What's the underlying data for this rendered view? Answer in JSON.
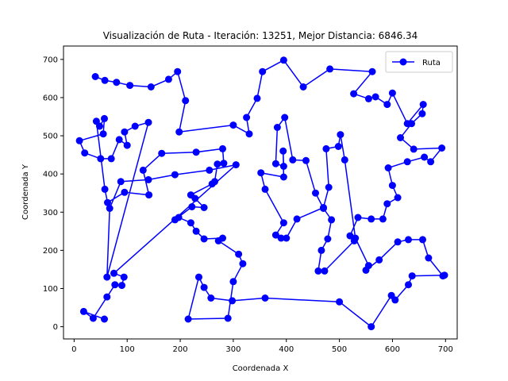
{
  "chart_data": {
    "type": "line",
    "title": "Visualización de Ruta - Iteración: 13251, Mejor Distancia: 6846.34",
    "xlabel": "Coordenada X",
    "ylabel": "Coordenada Y",
    "xlim": [
      -20,
      722
    ],
    "ylim": [
      -32,
      735
    ],
    "xticks": [
      0,
      100,
      200,
      300,
      400,
      500,
      600,
      700
    ],
    "yticks": [
      0,
      100,
      200,
      300,
      400,
      500,
      600,
      700
    ],
    "grid": false,
    "legend_position": "top-right",
    "series": [
      {
        "name": "Ruta",
        "color": "#0000ff",
        "marker": "circle",
        "x": [
          40,
          58,
          80,
          105,
          145,
          178,
          195,
          210,
          198,
          300,
          330,
          325,
          345,
          355,
          395,
          432,
          482,
          562,
          527,
          555,
          568,
          590,
          600,
          628,
          658,
          656,
          636,
          615,
          640,
          693,
          672,
          660,
          628,
          592,
          600,
          610,
          590,
          582,
          560,
          535,
          520,
          528,
          472,
          460,
          466,
          478,
          485,
          470,
          455,
          437,
          412,
          397,
          383,
          380,
          395,
          394,
          395,
          352,
          360,
          395,
          380,
          390,
          400,
          420,
          470,
          480,
          475,
          498,
          502,
          510,
          530,
          555,
          550,
          575,
          610,
          630,
          657,
          668,
          695,
          698,
          637,
          630,
          605,
          598,
          560,
          500,
          360,
          298,
          258,
          245,
          235,
          215,
          290,
          300,
          318,
          310,
          272,
          280,
          245,
          230,
          220,
          197,
          190,
          222,
          245,
          228,
          220,
          260,
          265,
          270,
          282,
          280,
          230,
          165,
          130,
          141,
          95,
          63,
          58,
          42,
          48,
          57,
          55,
          10,
          20,
          50,
          70,
          85,
          100,
          95,
          115,
          140,
          62,
          67,
          88,
          140,
          190,
          255,
          305,
          75,
          94,
          90,
          77,
          62,
          36,
          18,
          57
        ],
        "y": [
          655,
          645,
          640,
          632,
          628,
          648,
          668,
          592,
          510,
          528,
          505,
          548,
          598,
          668,
          698,
          628,
          675,
          668,
          610,
          597,
          602,
          582,
          612,
          532,
          582,
          558,
          532,
          495,
          465,
          468,
          432,
          444,
          432,
          416,
          370,
          338,
          322,
          282,
          282,
          286,
          238,
          225,
          146,
          146,
          200,
          230,
          280,
          310,
          350,
          435,
          437,
          548,
          522,
          427,
          420,
          460,
          392,
          403,
          360,
          272,
          240,
          232,
          232,
          282,
          312,
          365,
          466,
          472,
          503,
          437,
          232,
          160,
          148,
          175,
          222,
          228,
          228,
          180,
          133,
          135,
          133,
          110,
          70,
          82,
          0,
          65,
          75,
          68,
          75,
          103,
          130,
          20,
          22,
          118,
          165,
          190,
          225,
          232,
          230,
          250,
          272,
          286,
          280,
          314,
          312,
          336,
          345,
          374,
          380,
          426,
          428,
          466,
          457,
          454,
          410,
          345,
          352,
          325,
          360,
          538,
          525,
          545,
          505,
          487,
          455,
          440,
          440,
          490,
          475,
          510,
          525,
          535,
          130,
          310,
          380,
          385,
          398,
          410,
          424,
          140,
          130,
          108,
          110,
          78,
          22,
          40,
          20
        ]
      }
    ]
  }
}
